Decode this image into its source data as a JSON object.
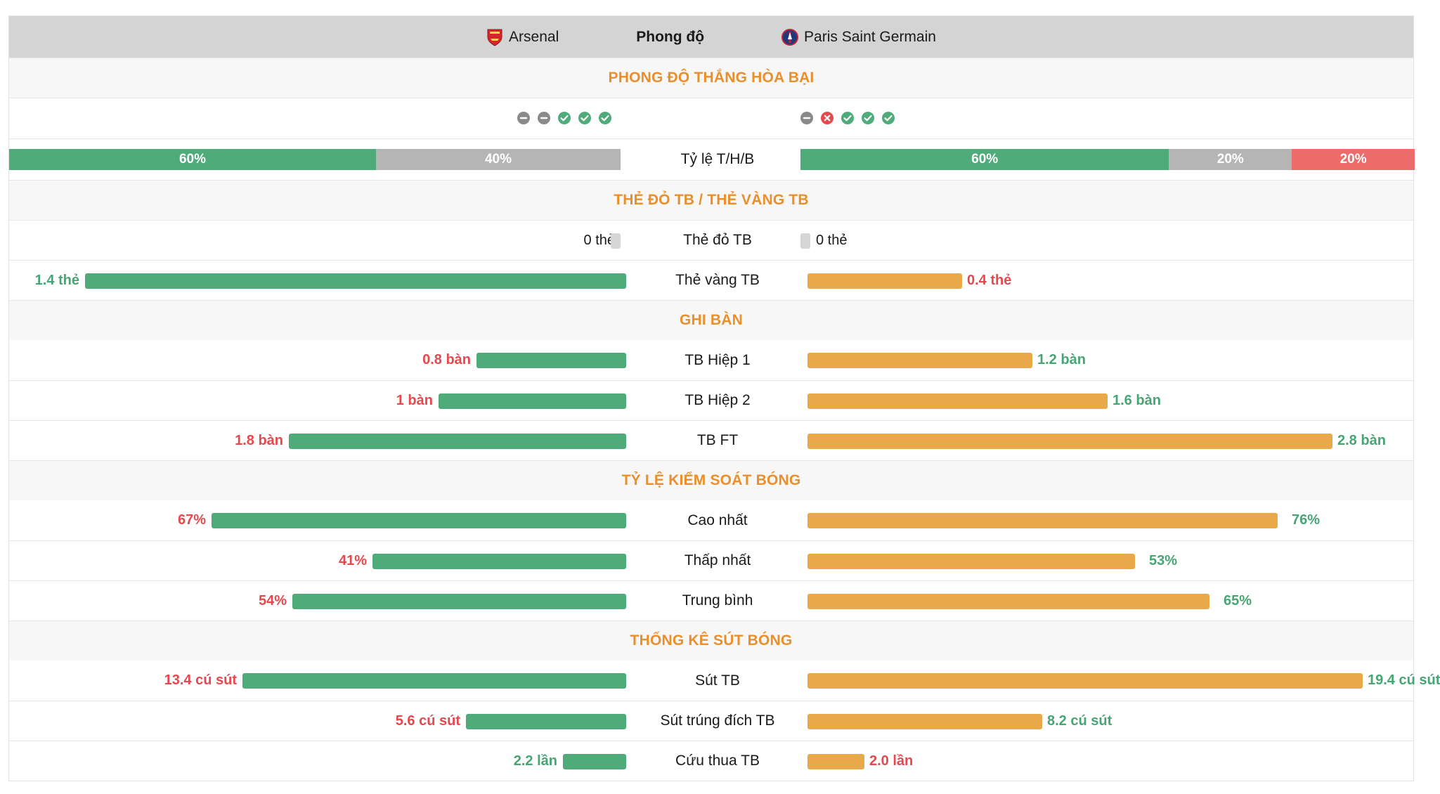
{
  "header": {
    "home_team": "Arsenal",
    "center": "Phong độ",
    "away_team": "Paris Saint Germain",
    "home_crest_icon": "arsenal-crest-icon",
    "away_crest_icon": "psg-crest-icon"
  },
  "colors": {
    "home_bar": "#4fab79",
    "away_bar": "#e9a84a",
    "win": "#4fab79",
    "draw": "#b5b5b5",
    "loss": "#ec6b6b",
    "section_title": "#e98f2c",
    "value_red": "#e5484d",
    "value_green": "#46a572"
  },
  "form": {
    "title": "PHONG ĐỘ THẮNG HÒA BẠI",
    "home": [
      "draw",
      "draw",
      "win",
      "win",
      "win"
    ],
    "away": [
      "draw",
      "loss",
      "win",
      "win",
      "win"
    ]
  },
  "ratio": {
    "label": "Tỷ lệ T/H/B",
    "home": [
      {
        "type": "win",
        "label": "60%",
        "value": 60
      },
      {
        "type": "draw",
        "label": "40%",
        "value": 40
      }
    ],
    "away": [
      {
        "type": "win",
        "label": "60%",
        "value": 60
      },
      {
        "type": "draw",
        "label": "20%",
        "value": 20
      },
      {
        "type": "loss",
        "label": "20%",
        "value": 20
      }
    ]
  },
  "cards": {
    "title": "THẺ ĐỎ TB / THẺ VÀNG TB",
    "red": {
      "label": "Thẻ đỏ TB",
      "home": "0 thẻ",
      "away": "0 thẻ"
    },
    "yellow": {
      "label": "Thẻ vàng TB",
      "home": "1.4 thẻ",
      "away": "0.4 thẻ",
      "home_value": 1.4,
      "away_value": 0.4
    }
  },
  "goals": {
    "title": "GHI BÀN",
    "rows": [
      {
        "label": "TB Hiệp 1",
        "home": "0.8 bàn",
        "away": "1.2 bàn",
        "home_value": 0.8,
        "away_value": 1.2
      },
      {
        "label": "TB Hiệp 2",
        "home": "1 bàn",
        "away": "1.6 bàn",
        "home_value": 1.0,
        "away_value": 1.6
      },
      {
        "label": "TB FT",
        "home": "1.8 bàn",
        "away": "2.8 bàn",
        "home_value": 1.8,
        "away_value": 2.8
      }
    ]
  },
  "possession": {
    "title": "TỶ LỆ KIỂM SOÁT BÓNG",
    "rows": [
      {
        "label": "Cao nhất",
        "home": "67%",
        "away": "76%",
        "home_value": 67,
        "away_value": 76
      },
      {
        "label": "Thấp nhất",
        "home": "41%",
        "away": "53%",
        "home_value": 41,
        "away_value": 53
      },
      {
        "label": "Trung bình",
        "home": "54%",
        "away": "65%",
        "home_value": 54,
        "away_value": 65
      }
    ]
  },
  "shots": {
    "title": "THỐNG KÊ SÚT BÓNG",
    "rows": [
      {
        "label": "Sút TB",
        "home": "13.4 cú sút",
        "away": "19.4 cú sút",
        "home_value": 13.4,
        "away_value": 19.4
      },
      {
        "label": "Sút trúng đích TB",
        "home": "5.6 cú sút",
        "away": "8.2 cú sút",
        "home_value": 5.6,
        "away_value": 8.2
      },
      {
        "label": "Cứu thua TB",
        "home": "2.2 lần",
        "away": "2.0 lần",
        "home_value": 2.2,
        "away_value": 2.0
      }
    ]
  }
}
